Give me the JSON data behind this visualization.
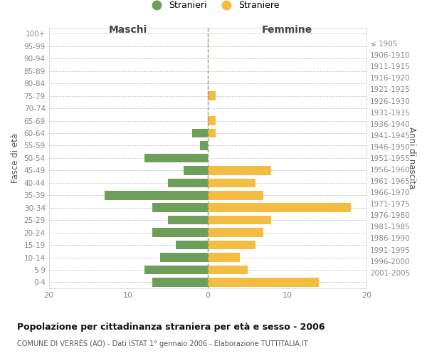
{
  "age_groups": [
    "0-4",
    "5-9",
    "10-14",
    "15-19",
    "20-24",
    "25-29",
    "30-34",
    "35-39",
    "40-44",
    "45-49",
    "50-54",
    "55-59",
    "60-64",
    "65-69",
    "70-74",
    "75-79",
    "80-84",
    "85-89",
    "90-94",
    "95-99",
    "100+"
  ],
  "birth_years": [
    "2001-2005",
    "1996-2000",
    "1991-1995",
    "1986-1990",
    "1981-1985",
    "1976-1980",
    "1971-1975",
    "1966-1970",
    "1961-1965",
    "1956-1960",
    "1951-1955",
    "1946-1950",
    "1941-1945",
    "1936-1940",
    "1931-1935",
    "1926-1930",
    "1921-1925",
    "1916-1920",
    "1911-1915",
    "1906-1910",
    "≤ 1905"
  ],
  "males": [
    7,
    8,
    6,
    4,
    7,
    5,
    7,
    13,
    5,
    3,
    8,
    1,
    2,
    0,
    0,
    0,
    0,
    0,
    0,
    0,
    0
  ],
  "females": [
    14,
    5,
    4,
    6,
    7,
    8,
    18,
    7,
    6,
    8,
    0,
    0,
    1,
    1,
    0,
    1,
    0,
    0,
    0,
    0,
    0
  ],
  "male_color": "#6d9e5a",
  "female_color": "#f5bc42",
  "male_label": "Stranieri",
  "female_label": "Straniere",
  "title": "Popolazione per cittadinanza straniera per età e sesso - 2006",
  "subtitle": "COMUNE DI VERRÈS (AO) - Dati ISTAT 1° gennaio 2006 - Elaborazione TUTTITALIA.IT",
  "xlabel_left": "Maschi",
  "xlabel_right": "Femmine",
  "ylabel_left": "Fasce di età",
  "ylabel_right": "Anni di nascita",
  "xlim": 20,
  "background_color": "#ffffff",
  "grid_color": "#cccccc",
  "spine_color": "#cccccc",
  "tick_color": "#888888",
  "label_color": "#555555"
}
